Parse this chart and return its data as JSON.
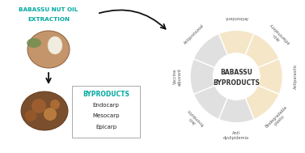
{
  "title_left_line1": "BABASSU NUT OIL",
  "title_left_line2": "EXTRACTION",
  "title_left_color": "#00a8a0",
  "byproducts_title": "BYPRODUCTS",
  "byproducts_title_color": "#00a8a0",
  "byproducts_items": [
    "Endocarp",
    "Mesocarp",
    "Epicarp"
  ],
  "center_label_line1": "BABASSU",
  "center_label_line2": "BYPRODUCTS",
  "center_label_color": "#333333",
  "bg_color": "#ffffff",
  "wedge_colors": [
    "#f5e6c8",
    "#f5e6c8",
    "#f5e6c8",
    "#f5e6c8",
    "#e0e0e0",
    "#e0e0e0",
    "#e0e0e0",
    "#e0e0e0"
  ],
  "segment_labels": [
    "Antioxidant",
    "Anti-\ninflammatory",
    "Antiparasitic",
    "Biodegradable\nplastic",
    "Anti\ndyslipidemia",
    "Anti\nthrombotic",
    "Vaccine\nadjuvant",
    "Antiprotozoal"
  ],
  "segment_label_color": "#555555",
  "n_segments": 8,
  "arrow_color": "#111111",
  "nut_color": "#c4956a",
  "pile_color": "#8B5E3C"
}
